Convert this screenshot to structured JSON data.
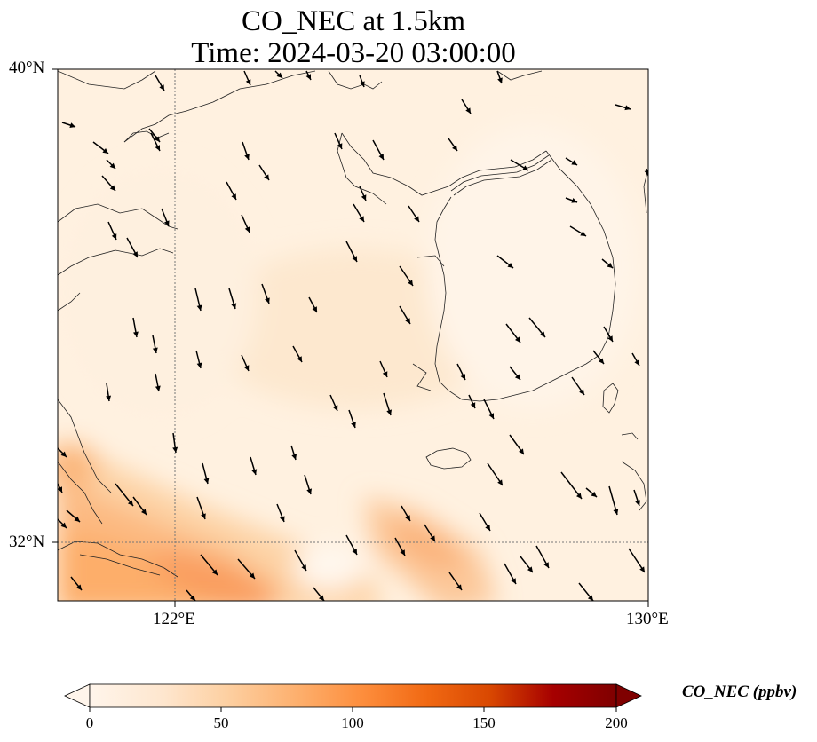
{
  "title": {
    "line1": "CO_NEC at 1.5km",
    "line2": "Time: 2024-03-20 03:00:00"
  },
  "map": {
    "type": "filled-contour map with wind vectors",
    "field": "CO_NEC",
    "units": "ppbv",
    "lon_range": [
      120,
      130
    ],
    "lat_range": [
      31,
      40
    ],
    "gridlines": {
      "lon": 122,
      "lat": 32,
      "style": "dotted"
    },
    "lon_labels": [
      "122°E",
      "130°E"
    ],
    "lat_labels": [
      "40°N",
      "32°N"
    ],
    "wind_direction": "from north-northwest",
    "high_concentration_area": "south-west corner (near Yangtze river mouth) and a band toward 126°E, 32°N"
  },
  "colorbar": {
    "title": "CO_NEC (ppbv)",
    "ticks": [
      "0",
      "50",
      "100",
      "150",
      "200"
    ],
    "min": 0,
    "max": 200,
    "colors": [
      "#fff5eb",
      "#fee6ce",
      "#fdd0a2",
      "#fdae6b",
      "#fd8d3c",
      "#f16913",
      "#d94801",
      "#a63603",
      "#7f2704"
    ],
    "extend": "both"
  }
}
